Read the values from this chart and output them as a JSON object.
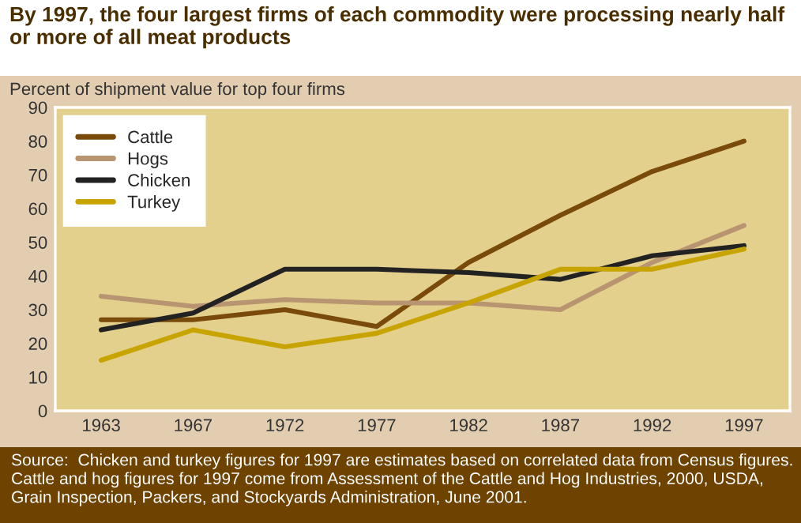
{
  "chart_data": {
    "type": "line",
    "title": "By 1997, the four largest firms of each commodity were processing nearly half or more of all meat products",
    "ylabel": "Percent of shipment value for top four firms",
    "categories": [
      "1963",
      "1967",
      "1972",
      "1977",
      "1982",
      "1987",
      "1992",
      "1997"
    ],
    "series": [
      {
        "name": "Cattle",
        "color": "#7a4a0a",
        "values": [
          27,
          27,
          30,
          25,
          44,
          58,
          71,
          80
        ]
      },
      {
        "name": "Hogs",
        "color": "#b89470",
        "values": [
          34,
          31,
          33,
          32,
          32,
          30,
          44,
          55
        ]
      },
      {
        "name": "Chicken",
        "color": "#222222",
        "values": [
          24,
          29,
          42,
          42,
          41,
          39,
          46,
          49
        ]
      },
      {
        "name": "Turkey",
        "color": "#c8a400",
        "values": [
          15,
          24,
          19,
          23,
          32,
          42,
          42,
          48
        ]
      }
    ],
    "ylim": [
      0,
      90
    ],
    "yticks": [
      0,
      10,
      20,
      30,
      40,
      50,
      60,
      70,
      80,
      90
    ],
    "grid": false,
    "legend": "top left",
    "marker": "none",
    "line_style": "solid",
    "annotations": [
      "Source:  Chicken and turkey figures for 1997 are estimates based on correlated data from Census figures. Cattle and hog figures for 1997 come from Assessment of the Cattle and Hog Industries, 2000, USDA, Grain Inspection, Packers, and Stockyards Administration, June 2001."
    ]
  }
}
